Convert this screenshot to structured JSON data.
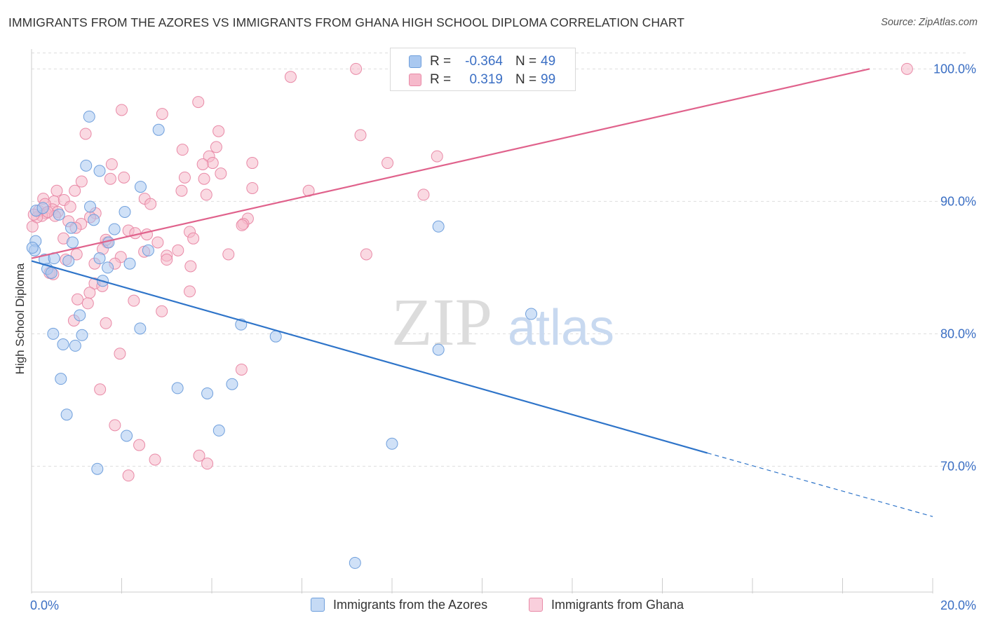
{
  "title": "IMMIGRANTS FROM THE AZORES VS IMMIGRANTS FROM GHANA HIGH SCHOOL DIPLOMA CORRELATION CHART",
  "source": "Source: ZipAtlas.com",
  "watermark": {
    "zip": "ZIP",
    "atlas": "atlas"
  },
  "colors": {
    "azores_fill": "#a9c8f0",
    "azores_stroke": "#6f9fdc",
    "azores_line": "#2e74c9",
    "ghana_fill": "#f6b9cb",
    "ghana_stroke": "#e98aa7",
    "ghana_line": "#e0628c",
    "tick_label": "#3b6fc4",
    "grid": "#dddddd"
  },
  "legend": {
    "rows": [
      {
        "r_label": "R =",
        "r_value": "-0.364",
        "n_label": "N =",
        "n_value": "49"
      },
      {
        "r_label": "R =",
        "r_value": "0.319",
        "n_label": "N =",
        "n_value": "99"
      }
    ]
  },
  "bottom_legend": [
    "Immigrants from the Azores",
    "Immigrants from Ghana"
  ],
  "chart_data": {
    "type": "scatter",
    "title": "IMMIGRANTS FROM THE AZORES VS IMMIGRANTS FROM GHANA HIGH SCHOOL DIPLOMA CORRELATION CHART",
    "xlabel": "",
    "ylabel": "High School Diploma",
    "xlim": [
      0,
      20
    ],
    "ylim": [
      60.5,
      101.5
    ],
    "x_tick_labels": [
      "0.0%",
      "20.0%"
    ],
    "y_ticks": [
      70,
      80,
      90,
      100
    ],
    "y_tick_labels": [
      "70.0%",
      "80.0%",
      "90.0%",
      "100.0%"
    ],
    "grid": true,
    "legend_position": "top-center",
    "series": [
      {
        "name": "Immigrants from the Azores",
        "R": -0.364,
        "N": 49,
        "trend": {
          "x0": 0,
          "y0": 85.5,
          "x1": 15.0,
          "y1": 71.0,
          "dashed_to_x": 20.0,
          "dashed_to_y": 66.2
        },
        "points": [
          [
            1.28,
            96.4
          ],
          [
            2.82,
            95.4
          ],
          [
            1.21,
            92.7
          ],
          [
            1.51,
            92.3
          ],
          [
            2.42,
            91.1
          ],
          [
            1.3,
            89.6
          ],
          [
            2.07,
            89.2
          ],
          [
            0.1,
            89.3
          ],
          [
            0.25,
            89.5
          ],
          [
            1.38,
            88.6
          ],
          [
            0.61,
            89.0
          ],
          [
            0.88,
            88.0
          ],
          [
            1.84,
            87.9
          ],
          [
            9.03,
            88.1
          ],
          [
            0.09,
            87.0
          ],
          [
            0.91,
            86.9
          ],
          [
            1.71,
            86.9
          ],
          [
            2.59,
            86.3
          ],
          [
            0.07,
            86.3
          ],
          [
            0.29,
            85.6
          ],
          [
            0.5,
            85.7
          ],
          [
            0.82,
            85.5
          ],
          [
            1.51,
            85.7
          ],
          [
            2.18,
            85.3
          ],
          [
            1.69,
            85.0
          ],
          [
            0.35,
            84.9
          ],
          [
            0.44,
            84.6
          ],
          [
            1.58,
            84.0
          ],
          [
            11.09,
            81.5
          ],
          [
            1.07,
            81.4
          ],
          [
            2.41,
            80.4
          ],
          [
            4.65,
            80.7
          ],
          [
            0.48,
            80.0
          ],
          [
            1.12,
            79.9
          ],
          [
            5.42,
            79.8
          ],
          [
            0.7,
            79.2
          ],
          [
            0.97,
            79.1
          ],
          [
            9.03,
            78.8
          ],
          [
            0.65,
            76.6
          ],
          [
            3.24,
            75.9
          ],
          [
            4.45,
            76.2
          ],
          [
            3.9,
            75.5
          ],
          [
            0.78,
            73.9
          ],
          [
            2.11,
            72.3
          ],
          [
            4.16,
            72.7
          ],
          [
            8.0,
            71.7
          ],
          [
            1.46,
            69.8
          ],
          [
            7.18,
            62.7
          ],
          [
            0.02,
            86.5
          ]
        ]
      },
      {
        "name": "Immigrants from Ghana",
        "R": 0.319,
        "N": 99,
        "trend": {
          "x0": 0,
          "y0": 85.7,
          "x1": 18.6,
          "y1": 100.0
        },
        "points": [
          [
            7.2,
            100.0
          ],
          [
            19.43,
            100.0
          ],
          [
            5.75,
            99.4
          ],
          [
            3.7,
            97.5
          ],
          [
            2.0,
            96.9
          ],
          [
            2.9,
            96.6
          ],
          [
            4.15,
            95.3
          ],
          [
            1.2,
            95.1
          ],
          [
            7.3,
            95.0
          ],
          [
            3.35,
            93.9
          ],
          [
            4.1,
            94.1
          ],
          [
            9.0,
            93.4
          ],
          [
            3.94,
            93.4
          ],
          [
            4.02,
            92.9
          ],
          [
            3.8,
            92.8
          ],
          [
            7.9,
            92.9
          ],
          [
            4.9,
            92.9
          ],
          [
            1.78,
            92.8
          ],
          [
            4.2,
            92.1
          ],
          [
            3.4,
            91.8
          ],
          [
            3.83,
            91.7
          ],
          [
            2.05,
            91.8
          ],
          [
            1.75,
            91.7
          ],
          [
            1.11,
            91.5
          ],
          [
            4.9,
            91.0
          ],
          [
            3.33,
            90.8
          ],
          [
            6.15,
            90.8
          ],
          [
            0.96,
            90.8
          ],
          [
            0.56,
            90.8
          ],
          [
            8.7,
            90.5
          ],
          [
            3.88,
            90.5
          ],
          [
            2.51,
            90.2
          ],
          [
            0.26,
            90.2
          ],
          [
            0.5,
            90.0
          ],
          [
            0.72,
            90.1
          ],
          [
            2.64,
            89.8
          ],
          [
            0.86,
            89.6
          ],
          [
            0.46,
            89.4
          ],
          [
            0.16,
            89.3
          ],
          [
            0.58,
            89.2
          ],
          [
            0.32,
            89.1
          ],
          [
            0.23,
            88.9
          ],
          [
            1.42,
            89.1
          ],
          [
            4.8,
            88.7
          ],
          [
            4.7,
            88.3
          ],
          [
            4.67,
            88.2
          ],
          [
            0.82,
            88.5
          ],
          [
            1.1,
            88.3
          ],
          [
            0.98,
            88.0
          ],
          [
            2.15,
            87.8
          ],
          [
            2.56,
            87.5
          ],
          [
            3.51,
            87.7
          ],
          [
            3.59,
            87.2
          ],
          [
            0.71,
            87.2
          ],
          [
            1.68,
            86.9
          ],
          [
            2.8,
            86.9
          ],
          [
            1.58,
            86.4
          ],
          [
            2.5,
            86.2
          ],
          [
            3.0,
            85.9
          ],
          [
            3.25,
            86.3
          ],
          [
            4.37,
            86.0
          ],
          [
            7.43,
            86.0
          ],
          [
            0.76,
            85.6
          ],
          [
            1.98,
            85.8
          ],
          [
            3.0,
            85.6
          ],
          [
            1.4,
            85.3
          ],
          [
            1.85,
            85.3
          ],
          [
            3.53,
            85.1
          ],
          [
            0.4,
            84.6
          ],
          [
            0.48,
            84.5
          ],
          [
            1.4,
            83.8
          ],
          [
            1.57,
            83.6
          ],
          [
            3.51,
            83.2
          ],
          [
            1.29,
            83.1
          ],
          [
            2.27,
            82.5
          ],
          [
            1.02,
            82.6
          ],
          [
            1.25,
            82.3
          ],
          [
            2.89,
            81.7
          ],
          [
            0.94,
            81.0
          ],
          [
            1.65,
            80.8
          ],
          [
            1.96,
            78.5
          ],
          [
            4.66,
            77.3
          ],
          [
            1.52,
            75.8
          ],
          [
            1.85,
            73.1
          ],
          [
            2.39,
            71.6
          ],
          [
            3.72,
            70.8
          ],
          [
            3.9,
            70.2
          ],
          [
            2.74,
            70.5
          ],
          [
            2.15,
            69.3
          ],
          [
            0.52,
            88.9
          ],
          [
            0.12,
            88.8
          ],
          [
            1.0,
            86.0
          ],
          [
            2.3,
            87.6
          ],
          [
            0.3,
            89.8
          ],
          [
            1.3,
            88.8
          ],
          [
            0.02,
            88.1
          ],
          [
            0.05,
            89.0
          ],
          [
            0.36,
            89.2
          ],
          [
            1.65,
            87.1
          ]
        ]
      }
    ]
  }
}
